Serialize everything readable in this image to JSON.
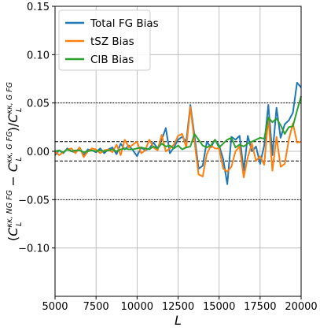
{
  "chart_data": {
    "type": "line",
    "xlabel": "L",
    "ylabel": "(C_L^{κκ, NG FG} − C_L^{κκ, G FG})/C_L^{κκ, G FG}",
    "ylabel_parts": {
      "open": "(",
      "c1": "C",
      "c1_sup": "κκ, NG FG",
      "c1_sub": "L",
      "minus": " − ",
      "c2": "C",
      "c2_sup": "κκ, G FG",
      "c2_sub": "L",
      "mid": ")/",
      "c3": "C",
      "c3_sup": "κκ, G FG",
      "c3_sub": "L"
    },
    "xlim": [
      5000,
      20000
    ],
    "ylim": [
      -0.15,
      0.15
    ],
    "xticks": [
      5000,
      7500,
      10000,
      12500,
      15000,
      17500,
      20000
    ],
    "xtick_labels": [
      "5000",
      "7500",
      "10000",
      "12500",
      "15000",
      "17500",
      "20000"
    ],
    "yticks": [
      -0.1,
      -0.05,
      0.0,
      0.05,
      0.1,
      0.15
    ],
    "ytick_labels": [
      "−0.10",
      "−0.05",
      "0.00",
      "0.05",
      "0.10",
      "0.15"
    ],
    "grid": true,
    "legend_position": "top-left",
    "reference_lines": [
      {
        "y": 0.05,
        "style": "dotted"
      },
      {
        "y": -0.05,
        "style": "dotted"
      },
      {
        "y": 0.01,
        "style": "dashed"
      },
      {
        "y": -0.01,
        "style": "dashed"
      }
    ],
    "x": [
      5000,
      5250,
      5500,
      5750,
      6000,
      6250,
      6500,
      6750,
      7000,
      7250,
      7500,
      7750,
      8000,
      8250,
      8500,
      8750,
      9000,
      9250,
      9500,
      9750,
      10000,
      10250,
      10500,
      10750,
      11000,
      11250,
      11500,
      11750,
      12000,
      12250,
      12500,
      12750,
      13000,
      13250,
      13500,
      13750,
      14000,
      14250,
      14500,
      14750,
      15000,
      15250,
      15500,
      15750,
      16000,
      16250,
      16500,
      16750,
      17000,
      17250,
      17500,
      17750,
      18000,
      18250,
      18500,
      18750,
      19000,
      19250,
      19500,
      19750,
      20000
    ],
    "series": [
      {
        "name": "Total FG Bias",
        "color": "#1f77b4",
        "values": [
          -0.004,
          0.001,
          -0.002,
          0.003,
          0.0,
          -0.001,
          0.004,
          -0.004,
          0.002,
          0.001,
          -0.001,
          0.003,
          -0.002,
          0.002,
          0.004,
          -0.003,
          0.008,
          0.002,
          0.006,
          0.001,
          -0.005,
          0.004,
          0.001,
          0.003,
          0.009,
          0.003,
          0.012,
          0.024,
          -0.002,
          0.004,
          0.012,
          0.015,
          0.01,
          0.048,
          0.016,
          -0.018,
          -0.015,
          0.01,
          0.004,
          0.012,
          0.006,
          -0.008,
          -0.034,
          0.015,
          0.012,
          0.016,
          -0.02,
          0.016,
          0.0,
          0.005,
          -0.013,
          0.006,
          0.048,
          -0.004,
          0.045,
          0.014,
          0.028,
          0.032,
          0.04,
          0.071,
          0.066
        ]
      },
      {
        "name": "tSZ Bias",
        "color": "#ff7f0e",
        "values": [
          0.0,
          -0.004,
          -0.001,
          0.002,
          0.003,
          -0.002,
          0.004,
          -0.006,
          0.0,
          0.003,
          0.002,
          -0.002,
          0.001,
          0.002,
          -0.001,
          0.007,
          -0.004,
          0.012,
          0.004,
          0.007,
          0.01,
          -0.002,
          0.001,
          0.012,
          0.004,
          0.001,
          0.017,
          0.0,
          0.003,
          0.007,
          0.016,
          0.018,
          0.004,
          0.046,
          0.01,
          -0.024,
          -0.026,
          -0.003,
          0.006,
          0.003,
          0.003,
          -0.018,
          -0.021,
          -0.016,
          0.0,
          0.005,
          -0.027,
          -0.006,
          0.008,
          -0.01,
          -0.005,
          -0.014,
          0.035,
          -0.02,
          0.015,
          -0.016,
          -0.013,
          0.012,
          0.029,
          0.009,
          0.01
        ]
      },
      {
        "name": "CIB Bias",
        "color": "#2ca02c",
        "values": [
          0.0,
          0.001,
          -0.001,
          0.002,
          0.0,
          0.001,
          0.001,
          -0.001,
          0.0,
          0.001,
          0.0,
          0.001,
          0.0,
          0.001,
          0.002,
          0.0,
          0.002,
          0.003,
          0.002,
          0.002,
          0.003,
          0.004,
          0.003,
          0.002,
          0.005,
          0.003,
          0.008,
          0.005,
          0.006,
          0.003,
          0.006,
          0.002,
          0.004,
          0.005,
          0.018,
          0.012,
          0.006,
          0.004,
          0.006,
          0.012,
          0.004,
          0.008,
          0.012,
          0.014,
          0.004,
          0.007,
          0.005,
          0.008,
          0.01,
          0.012,
          0.014,
          0.013,
          0.035,
          0.03,
          0.034,
          0.027,
          0.018,
          0.025,
          0.026,
          0.042,
          0.057
        ]
      }
    ]
  }
}
